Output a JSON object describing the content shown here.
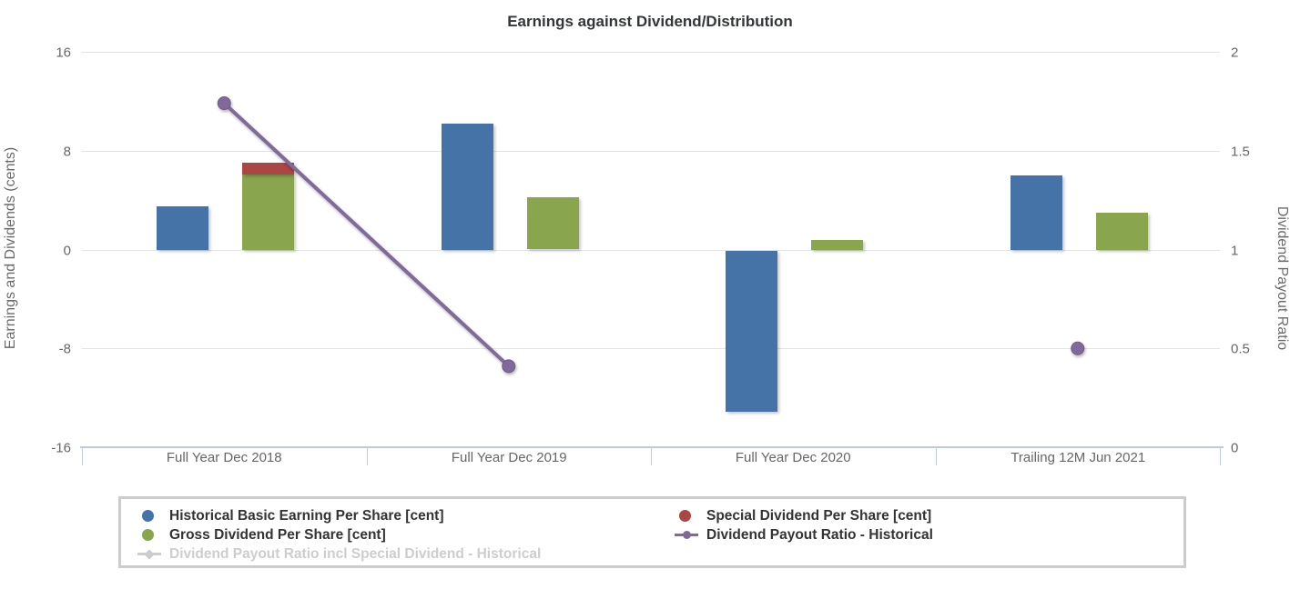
{
  "title": "Earnings against Dividend/Distribution",
  "chart_data": {
    "type": "bar+line combo (dual axis)",
    "title": "Earnings against Dividend/Distribution",
    "categories": [
      "Full Year Dec 2018",
      "Full Year Dec 2019",
      "Full Year Dec 2020",
      "Trailing 12M Jun 2021"
    ],
    "left_axis": {
      "label": "Earnings and Dividends (cents)",
      "ticks": [
        16,
        8,
        0,
        -8,
        -16
      ],
      "min": -16,
      "max": 16,
      "grid": true
    },
    "right_axis": {
      "label": "Dividend Payout Ratio",
      "ticks": [
        2,
        1.5,
        1,
        0.5,
        0
      ],
      "min": 0,
      "max": 2
    },
    "bar_series": [
      {
        "name": "Historical Basic Earning Per Share [cent]",
        "color": "#4572A7",
        "group": "eps",
        "values": [
          3.5,
          10.2,
          -13.0,
          6.0
        ]
      },
      {
        "name": "Gross Dividend Per Share [cent]",
        "color": "#89A54E",
        "group": "dividend-stack",
        "values": [
          6.1,
          4.2,
          0.8,
          3.0
        ]
      },
      {
        "name": "Special Dividend Per Share [cent]",
        "color": "#AA4643",
        "group": "dividend-stack",
        "values": [
          0.95,
          0,
          0,
          0
        ]
      }
    ],
    "line_series": [
      {
        "name": "Dividend Payout Ratio - Historical",
        "color": "#80699B",
        "axis": "right",
        "values": [
          1.74,
          0.41,
          null,
          0.5
        ]
      }
    ],
    "hidden_series": [
      "Dividend Payout Ratio incl Special Dividend - Historical"
    ],
    "legend": {
      "position": "bottom",
      "columns": [
        [
          {
            "label": "Historical Basic Earning Per Share [cent]",
            "marker": "circle",
            "color": "#4572A7",
            "enabled": true
          },
          {
            "label": "Gross Dividend Per Share [cent]",
            "marker": "circle",
            "color": "#89A54E",
            "enabled": true
          },
          {
            "label": "Dividend Payout Ratio incl Special Dividend - Historical",
            "marker": "line-diamond",
            "color": "#cdcdcd",
            "enabled": false
          }
        ],
        [
          {
            "label": "Special Dividend Per Share [cent]",
            "marker": "circle",
            "color": "#AA4643",
            "enabled": true
          },
          {
            "label": "Dividend Payout Ratio - Historical",
            "marker": "line-circle",
            "color": "#80699B",
            "enabled": true
          }
        ]
      ]
    },
    "colors": {
      "eps_bar": "#4572A7",
      "gross_dividend_bar": "#89A54E",
      "special_dividend_bar": "#AA4643",
      "payout_ratio_line": "#80699B",
      "gridline": "#e4e4e4",
      "x_axis_line": "#c0ccda",
      "tick_text": "#666666",
      "title_text": "#333639",
      "legend_disabled_text": "#cdcdcd"
    }
  }
}
